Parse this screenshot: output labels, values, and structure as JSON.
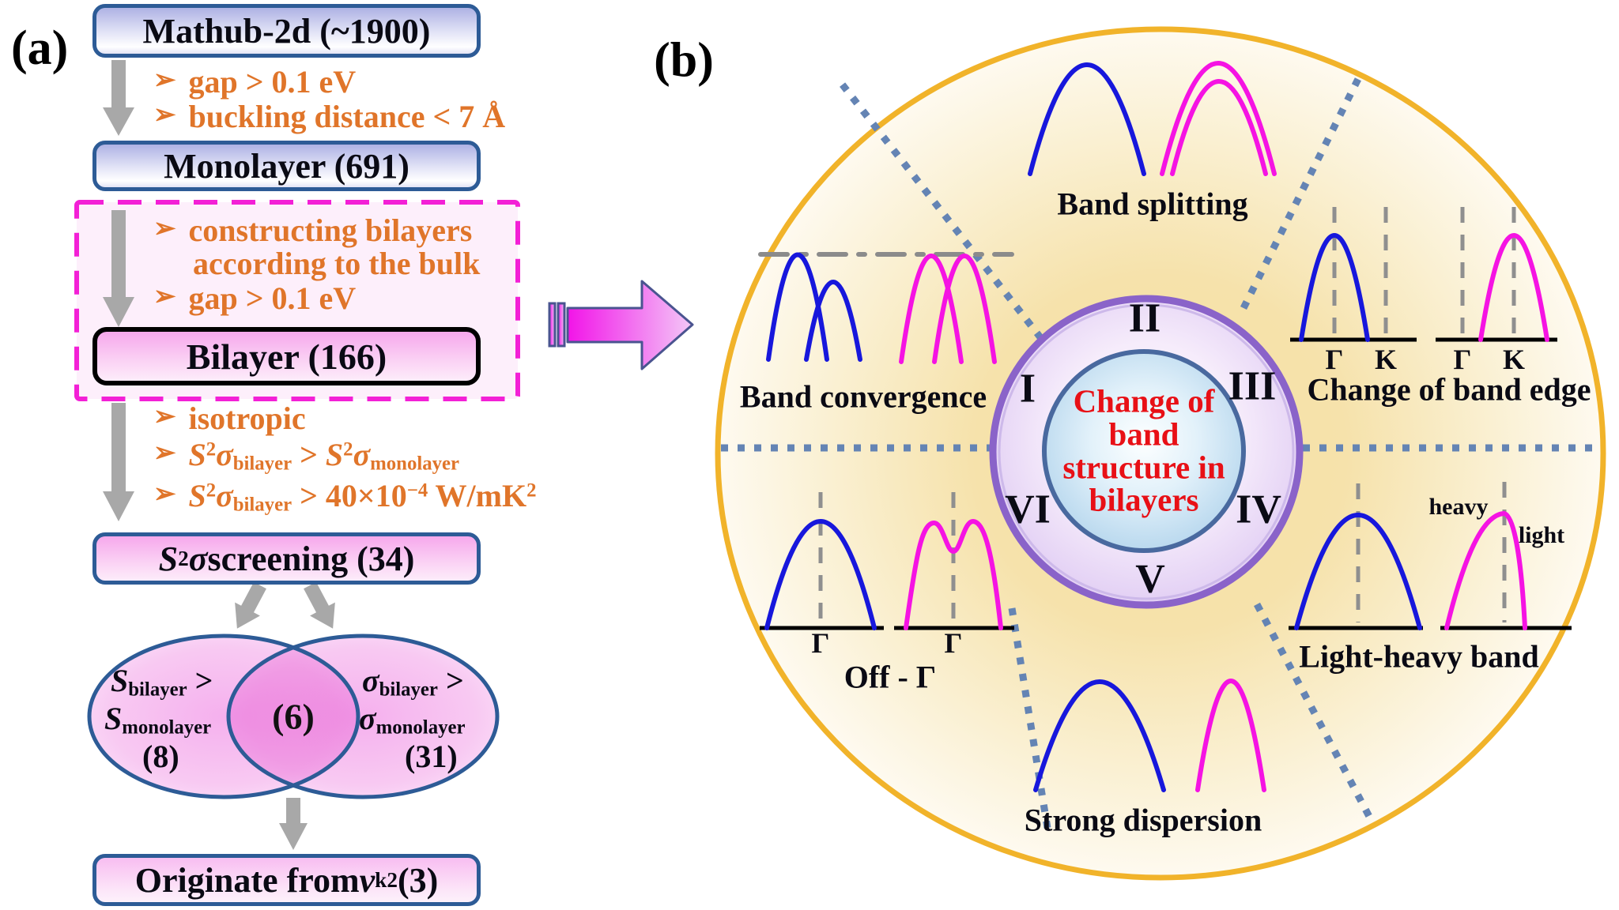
{
  "panel_a": {
    "label": "(a)",
    "bullet_glyph": "➢",
    "box_mathub": "Mathub-2d (~1900)",
    "crit_gap1": "gap > 0.1 eV",
    "crit_buckling": "buckling distance < 7 Å",
    "box_monolayer": "Monolayer (691)",
    "crit_construct_line1": "constructing bilayers",
    "crit_construct_line2": "according to the bulk",
    "crit_gap2": "gap > 0.1 eV",
    "box_bilayer": "Bilayer (166)",
    "crit_isotropic": "isotropic",
    "crit_pf_compare": [
      {
        "t": "S",
        "i": true
      },
      {
        "t": "2",
        "sup": true
      },
      {
        "t": "σ",
        "i": true
      },
      {
        "t": "bilayer",
        "sub": true
      },
      {
        "t": " > "
      },
      {
        "t": "S",
        "i": true
      },
      {
        "t": "2",
        "sup": true
      },
      {
        "t": "σ",
        "i": true
      },
      {
        "t": "monolayer",
        "sub": true
      }
    ],
    "crit_pf_threshold": [
      {
        "t": "S",
        "i": true
      },
      {
        "t": "2",
        "sup": true
      },
      {
        "t": "σ",
        "i": true
      },
      {
        "t": "bilayer",
        "sub": true
      },
      {
        "t": " > 40×10"
      },
      {
        "t": "−4",
        "sup": true
      },
      {
        "t": " W/mK"
      },
      {
        "t": "2",
        "sup": true
      }
    ],
    "box_screening": [
      {
        "t": "S",
        "i": true
      },
      {
        "t": "2",
        "sup": true
      },
      {
        "t": "σ",
        "i": true
      },
      {
        "t": " screening (34)"
      }
    ],
    "venn_left": {
      "line1": [
        {
          "t": "S",
          "i": true
        },
        {
          "t": "bilayer",
          "sub": true
        },
        {
          "t": " >"
        }
      ],
      "line2": [
        {
          "t": "S",
          "i": true
        },
        {
          "t": "monolayer",
          "sub": true
        }
      ],
      "count": "(8)"
    },
    "venn_overlap_count": "(6)",
    "venn_right": {
      "line1": [
        {
          "t": "σ",
          "i": true
        },
        {
          "t": "bilayer",
          "sub": true
        },
        {
          "t": " >"
        }
      ],
      "line2": [
        {
          "t": "σ",
          "i": true
        },
        {
          "t": "monolayer",
          "sub": true
        }
      ],
      "count": "(31)"
    },
    "box_originate": [
      {
        "t": "Originate from "
      },
      {
        "t": "ν",
        "i": true
      },
      {
        "t": "k",
        "sub": true
      },
      {
        "t": "2",
        "sup": true
      },
      {
        "t": " (3)"
      }
    ]
  },
  "panel_b": {
    "label": "(b)",
    "center_lines": [
      "Change of",
      "band",
      "structure in",
      "bilayers"
    ],
    "numerals": {
      "i": "I",
      "ii": "II",
      "iii": "III",
      "iv": "IV",
      "v": "V",
      "vi": "VI"
    },
    "sectors": {
      "band_convergence": "Band convergence",
      "band_splitting": "Band splitting",
      "change_band_edge": "Change of band edge",
      "light_heavy": "Light-heavy band",
      "strong_dispersion": "Strong dispersion",
      "off_gamma": "Off - Γ"
    },
    "ticks": {
      "gamma": "Γ",
      "k": "K"
    },
    "heavy_label": "heavy",
    "light_label": "light"
  },
  "colors": {
    "blue_curve": "#1717dc",
    "magenta_curve": "#f513e3",
    "gold_ring": "#f1b32a",
    "orange_text": "#e0752a",
    "box_border_blue": "#2d5b96",
    "dashed_box_magenta": "#f320d6",
    "center_text_red": "#e81016",
    "gray_arrow": "#a8a8a8",
    "dotted_ray_blue": "#6484b4",
    "ring_border_purple": "#8a63c9",
    "core_border_blue": "#49699f"
  }
}
